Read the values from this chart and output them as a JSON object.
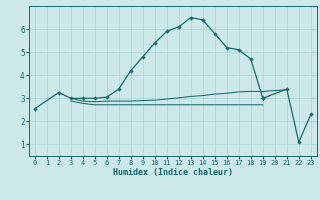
{
  "xlabel": "Humidex (Indice chaleur)",
  "background_color": "#cce8e8",
  "line_color": "#1a6b6b",
  "grid_color": "#aad4d4",
  "xlim": [
    -0.5,
    23.5
  ],
  "ylim": [
    0.5,
    7.0
  ],
  "yticks": [
    1,
    2,
    3,
    4,
    5,
    6
  ],
  "xticks": [
    0,
    1,
    2,
    3,
    4,
    5,
    6,
    7,
    8,
    9,
    10,
    11,
    12,
    13,
    14,
    15,
    16,
    17,
    18,
    19,
    20,
    21,
    22,
    23
  ],
  "main_line": {
    "x": [
      0,
      2,
      3,
      4,
      5,
      6,
      7,
      8,
      9,
      10,
      11,
      12,
      13,
      14,
      15,
      16,
      17,
      18,
      19
    ],
    "y": [
      2.55,
      3.25,
      3.0,
      3.0,
      3.0,
      3.05,
      3.4,
      4.2,
      4.8,
      5.4,
      5.9,
      6.1,
      6.5,
      6.4,
      5.8,
      5.2,
      5.1,
      4.7,
      3.0
    ]
  },
  "tail_line": {
    "x": [
      19,
      21,
      22,
      23
    ],
    "y": [
      3.0,
      3.4,
      1.1,
      2.3
    ]
  },
  "upper_flat": {
    "x": [
      3,
      4,
      5,
      6,
      7,
      8,
      9,
      10,
      11,
      12,
      13,
      14,
      15,
      16,
      17,
      18,
      19,
      21
    ],
    "y": [
      3.0,
      2.88,
      2.85,
      2.88,
      2.88,
      2.88,
      2.9,
      2.92,
      2.97,
      3.02,
      3.08,
      3.12,
      3.18,
      3.22,
      3.28,
      3.3,
      3.3,
      3.37
    ]
  },
  "lower_flat": {
    "x": [
      3,
      4,
      5,
      6,
      7,
      8,
      9,
      10,
      11,
      12,
      13,
      14,
      15,
      16,
      17,
      18,
      19
    ],
    "y": [
      2.88,
      2.78,
      2.72,
      2.72,
      2.72,
      2.72,
      2.72,
      2.72,
      2.72,
      2.72,
      2.72,
      2.72,
      2.72,
      2.72,
      2.72,
      2.72,
      2.72
    ]
  }
}
